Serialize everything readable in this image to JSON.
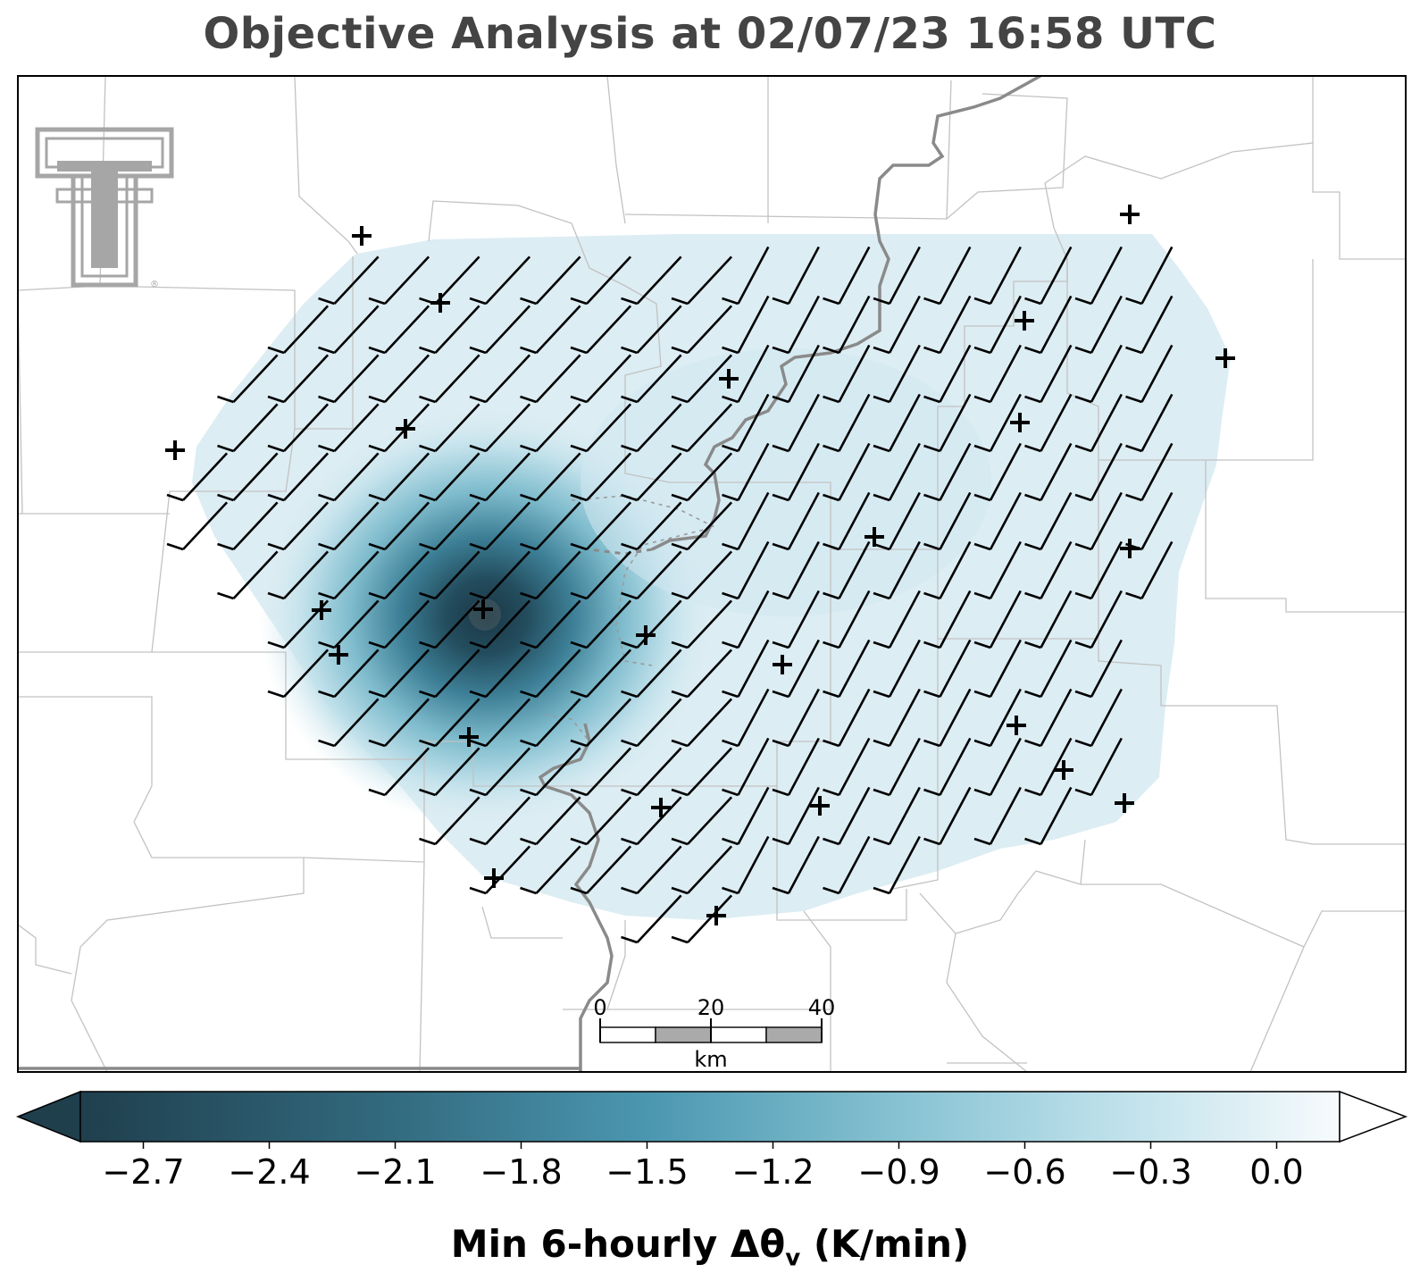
{
  "title": "Objective Analysis at 02/07/23 16:58 UTC",
  "logo": {
    "name": "texas-tech-double-t-logo",
    "mark": "®",
    "color": "#a6a6a6"
  },
  "colorbar": {
    "label_main": "Min 6-hourly Δθ",
    "label_sub": "v",
    "label_units": " (K/min)",
    "ticks": [
      "−2.7",
      "−2.4",
      "−2.1",
      "−1.8",
      "−1.5",
      "−1.2",
      "−0.9",
      "−0.6",
      "−0.3",
      "0.0"
    ],
    "range": [
      -2.85,
      0.15
    ],
    "extend": "both",
    "colors": {
      "min": "#1f3f4d",
      "mid": "#4b97b0",
      "light": "#a8d5e2",
      "max": "#f7fbfd"
    }
  },
  "scalebar": {
    "labels": [
      "0",
      "20",
      "40"
    ],
    "unit": "km"
  },
  "field": {
    "background_value": -0.48,
    "minimum": {
      "value": -2.85,
      "location": "west-central"
    }
  },
  "wind_barbs": {
    "direction": "southwest",
    "speed_description": "uniform ~10 kt"
  },
  "station_marker": "+",
  "colors": {
    "river": "#888888",
    "county_lines": "#c8c8c8",
    "frame": "#000000"
  }
}
